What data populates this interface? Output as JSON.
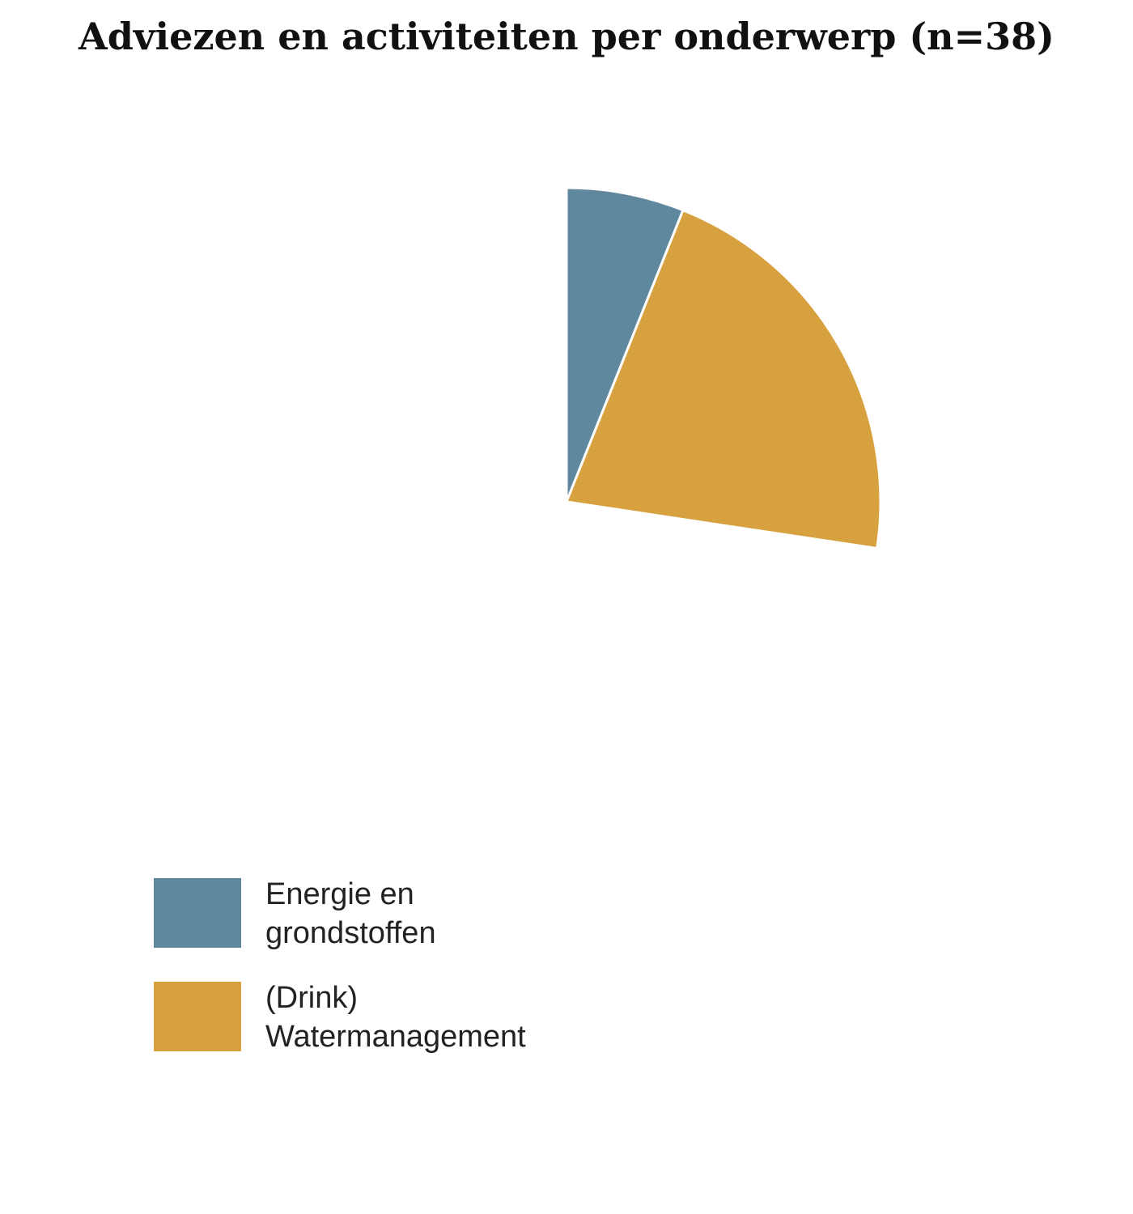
{
  "chart_data": {
    "type": "pie",
    "title": "Adviezen en activiteiten per onderwerp (n=38)",
    "start_angle_deg": 0,
    "direction": "clockwise",
    "total": 38,
    "slices": [
      {
        "label": "Energie en grondstoffen",
        "value": 2.3,
        "color": "#5f889f"
      },
      {
        "label": "(Drink) Watermanagement",
        "value": 8.1,
        "color": "#d6a13e"
      }
    ],
    "legend_position": "bottom-left"
  }
}
